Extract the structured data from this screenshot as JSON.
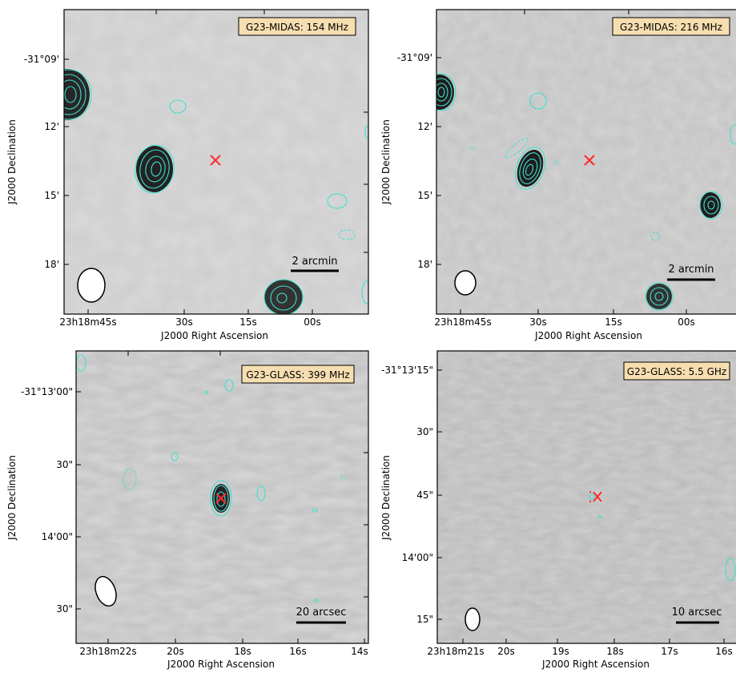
{
  "chart_data": [
    {
      "type": "heatmap",
      "label": "G23-MIDAS: 154 MHz",
      "xlabel": "J2000 Right Ascension",
      "ylabel": "J2000 Declination",
      "x_ticks": [
        "23h18m45s",
        "30s",
        "15s",
        "00s"
      ],
      "y_ticks": [
        "-31°09'",
        "12'",
        "15'",
        "18'"
      ],
      "scalebar": "2 arcmin",
      "marker": "red cross at target position"
    },
    {
      "type": "heatmap",
      "label": "G23-MIDAS: 216 MHz",
      "xlabel": "J2000 Right Ascension",
      "ylabel": "J2000 Declination",
      "x_ticks": [
        "23h18m45s",
        "30s",
        "15s",
        "00s"
      ],
      "y_ticks": [
        "-31°09'",
        "12'",
        "15'",
        "18'"
      ],
      "scalebar": "2 arcmin",
      "marker": "red cross at target position"
    },
    {
      "type": "heatmap",
      "label": "G23-GLASS: 399 MHz",
      "xlabel": "J2000 Right Ascension",
      "ylabel": "J2000 Declination",
      "x_ticks": [
        "23h18m22s",
        "20s",
        "18s",
        "16s",
        "14s"
      ],
      "y_ticks": [
        "-31°13'00\"",
        "30\"",
        "14'00\"",
        "30\""
      ],
      "scalebar": "20 arcsec",
      "marker": "red cross at target position"
    },
    {
      "type": "heatmap",
      "label": "G23-GLASS: 5.5 GHz",
      "xlabel": "J2000 Right Ascension",
      "ylabel": "J2000 Declination",
      "x_ticks": [
        "23h18m21s",
        "20s",
        "19s",
        "18s",
        "17s",
        "16s"
      ],
      "y_ticks": [
        "-31°13'15\"",
        "30\"",
        "45\"",
        "14'00\"",
        "15\""
      ],
      "scalebar": "10 arcsec",
      "marker": "red cross at target position"
    }
  ],
  "colors": {
    "contour": "#40e0d0",
    "marker": "#ff2a2a",
    "label_box": "#f7deb0"
  }
}
